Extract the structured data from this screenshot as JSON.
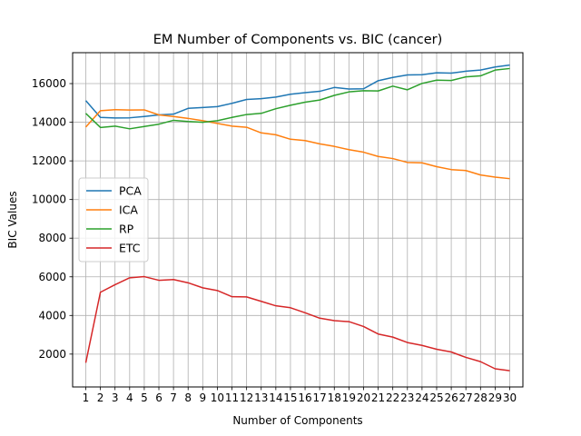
{
  "chart_data": {
    "type": "line",
    "title": "EM Number of Components vs. BIC (cancer)",
    "xlabel": "Number of Components",
    "ylabel": "BIC Values",
    "x": [
      1,
      2,
      3,
      4,
      5,
      6,
      7,
      8,
      9,
      10,
      11,
      12,
      13,
      14,
      15,
      16,
      17,
      18,
      19,
      20,
      21,
      22,
      23,
      24,
      25,
      26,
      27,
      28,
      29,
      30
    ],
    "xlim": [
      0.1,
      30.9
    ],
    "ylim": [
      300,
      17600
    ],
    "yticks": [
      2000,
      4000,
      6000,
      8000,
      10000,
      12000,
      14000,
      16000
    ],
    "grid": true,
    "legend_position": "center-left",
    "series": [
      {
        "name": "PCA",
        "color": "#1f77b4",
        "values": [
          15120,
          14250,
          14220,
          14230,
          14300,
          14380,
          14420,
          14720,
          14760,
          14810,
          14980,
          15180,
          15220,
          15300,
          15450,
          15530,
          15600,
          15800,
          15720,
          15730,
          16150,
          16320,
          16450,
          16460,
          16560,
          16540,
          16640,
          16700,
          16860,
          16960
        ]
      },
      {
        "name": "ICA",
        "color": "#ff7f0e",
        "values": [
          13750,
          14600,
          14650,
          14630,
          14640,
          14380,
          14300,
          14200,
          14080,
          13940,
          13800,
          13740,
          13450,
          13350,
          13120,
          13050,
          12880,
          12750,
          12580,
          12450,
          12230,
          12120,
          11920,
          11900,
          11700,
          11550,
          11500,
          11270,
          11160,
          11080
        ]
      },
      {
        "name": "RP",
        "color": "#2ca02c",
        "values": [
          14460,
          13730,
          13800,
          13660,
          13780,
          13900,
          14100,
          14040,
          14000,
          14080,
          14250,
          14400,
          14460,
          14700,
          14880,
          15040,
          15150,
          15390,
          15570,
          15630,
          15620,
          15870,
          15680,
          16010,
          16180,
          16160,
          16350,
          16400,
          16700,
          16780
        ]
      },
      {
        "name": "ETC",
        "color": "#d62728",
        "values": [
          1550,
          5200,
          5590,
          5950,
          6010,
          5820,
          5860,
          5690,
          5430,
          5290,
          4970,
          4960,
          4730,
          4500,
          4400,
          4140,
          3860,
          3730,
          3680,
          3430,
          3040,
          2880,
          2600,
          2450,
          2250,
          2110,
          1830,
          1610,
          1240,
          1140
        ]
      }
    ]
  }
}
